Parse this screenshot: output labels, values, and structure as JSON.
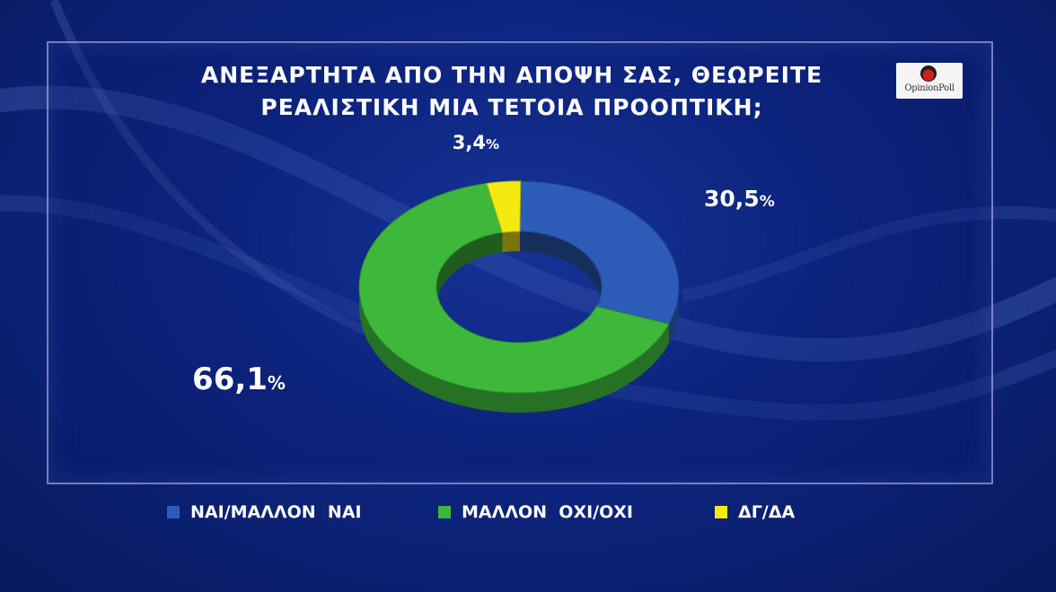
{
  "title_lines": [
    "ΑΝΕΞΑΡΤΗΤΑ ΑΠΟ ΤΗΝ ΑΠΟΨΗ ΣΑΣ, ΘΕΩΡΕΙΤΕ",
    "ΡΕΑΛΙΣΤΙΚΗ ΜΙΑ ΤΕΤΟΙΑ ΠΡΟΟΠΤΙΚΗ;"
  ],
  "logo": {
    "text": "OpinionPoll"
  },
  "chart_data": {
    "type": "pie",
    "style": "3d-donut",
    "title": "ΑΝΕΞΑΡΤΗΤΑ ΑΠΟ ΤΗΝ ΑΠΟΨΗ ΣΑΣ, ΘΕΩΡΕΙΤΕ ΡΕΑΛΙΣΤΙΚΗ ΜΙΑ ΤΕΤΟΙΑ ΠΡΟΟΠΤΙΚΗ;",
    "legend_position": "bottom",
    "unit": "%",
    "slices": [
      {
        "label": "ΝΑΙ/ΜΑΛΛΟΝ  ΝΑΙ",
        "value": 30.5,
        "value_text": "30,5",
        "color": "#2a5cb8"
      },
      {
        "label": "ΜΑΛΛΟΝ  ΟΧΙ/ΟΧΙ",
        "value": 66.1,
        "value_text": "66,1",
        "color": "#3db83a"
      },
      {
        "label": "ΔΓ/ΔΑ",
        "value": 3.4,
        "value_text": "3,4",
        "color": "#f2ea10"
      }
    ]
  }
}
